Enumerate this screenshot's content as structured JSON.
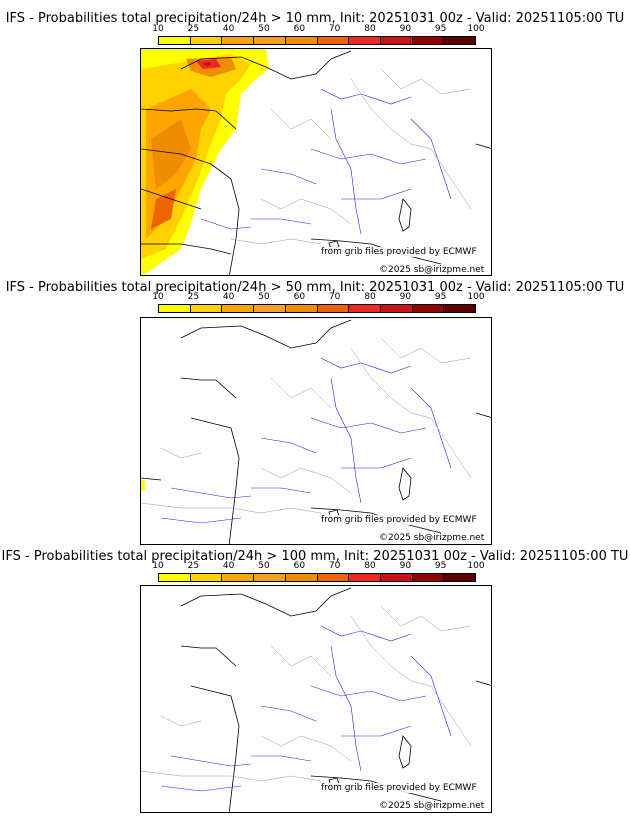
{
  "colorbar": {
    "ticks": [
      "10",
      "25",
      "40",
      "50",
      "60",
      "70",
      "80",
      "90",
      "95",
      "100"
    ],
    "colors": [
      "#ffff00",
      "#ffd200",
      "#ffa500",
      "#f5a020",
      "#f08c00",
      "#f06400",
      "#ee2a1e",
      "#c81414",
      "#900000",
      "#5a0000"
    ]
  },
  "panels": [
    {
      "title": "IFS - Probabilities total precipitation/24h > 10 mm, Init: 20251031 00z - Valid: 20251105:00 TU",
      "credit1": "from grib files provided by ECMWF",
      "credit2": "©2025 sb@irizpme.net"
    },
    {
      "title": "IFS - Probabilities total precipitation/24h > 50 mm, Init: 20251031 00z - Valid: 20251105:00 TU",
      "credit1": "from grib files provided by ECMWF",
      "credit2": "©2025 sb@irizpme.net"
    },
    {
      "title": "IFS - Probabilities total precipitation/24h > 100 mm, Init: 20251031 00z - Valid: 20251105:00 TU",
      "credit1": "from grib files provided by ECMWF",
      "credit2": "©2025 sb@irizpme.net"
    }
  ]
}
